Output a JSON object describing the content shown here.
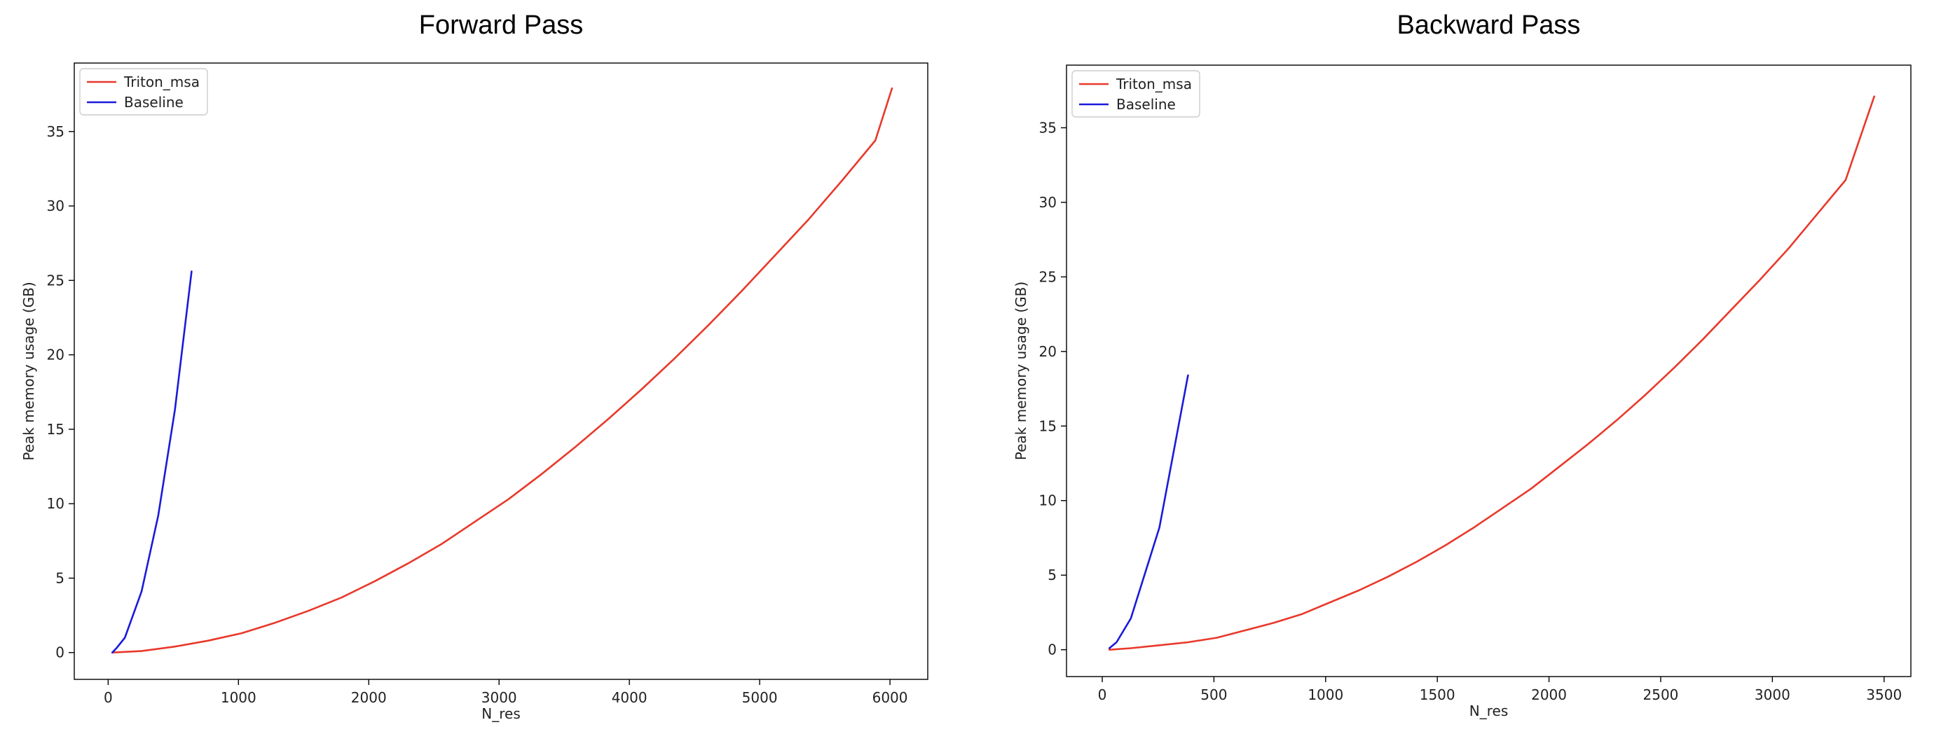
{
  "chart_data": [
    {
      "type": "line",
      "title": "Forward Pass",
      "xlabel": "N_res",
      "ylabel": "Peak memory usage (GB)",
      "xlim": [
        -260,
        6290
      ],
      "ylim": [
        -1.8,
        39.6
      ],
      "xticks": [
        0,
        1000,
        2000,
        3000,
        4000,
        5000,
        6000
      ],
      "yticks": [
        0,
        5,
        10,
        15,
        20,
        25,
        30,
        35
      ],
      "grid": false,
      "legend": "top-left",
      "series": [
        {
          "name": "Triton_msa",
          "color": "#e8392b",
          "x": [
            32,
            256,
            512,
            768,
            1024,
            1280,
            1536,
            1792,
            2048,
            2304,
            2560,
            2816,
            3072,
            3328,
            3584,
            3840,
            4096,
            4352,
            4608,
            4864,
            5120,
            5376,
            5632,
            5888,
            6016
          ],
          "y": [
            0.0,
            0.1,
            0.4,
            0.8,
            1.3,
            2.0,
            2.8,
            3.7,
            4.8,
            6.0,
            7.3,
            8.8,
            10.3,
            12.0,
            13.8,
            15.7,
            17.7,
            19.8,
            22.0,
            24.3,
            26.7,
            29.1,
            31.7,
            34.4,
            37.9
          ]
        },
        {
          "name": "Baseline",
          "color": "#1a1adb",
          "x": [
            32,
            64,
            128,
            256,
            384,
            512,
            640
          ],
          "y": [
            0.0,
            0.3,
            1.0,
            4.1,
            9.2,
            16.3,
            25.6
          ]
        }
      ]
    },
    {
      "type": "line",
      "title": "Backward Pass",
      "xlabel": "N_res",
      "ylabel": "Peak memory usage (GB)",
      "xlim": [
        -160,
        3620
      ],
      "ylim": [
        -1.8,
        39.2
      ],
      "xticks": [
        0,
        500,
        1000,
        1500,
        2000,
        2500,
        3000,
        3500
      ],
      "yticks": [
        0,
        5,
        10,
        15,
        20,
        25,
        30,
        35
      ],
      "grid": false,
      "legend": "top-left",
      "series": [
        {
          "name": "Triton_msa",
          "color": "#e8392b",
          "x": [
            32,
            128,
            256,
            384,
            512,
            640,
            768,
            896,
            1024,
            1152,
            1280,
            1408,
            1536,
            1664,
            1792,
            1920,
            2048,
            2176,
            2304,
            2432,
            2560,
            2688,
            2816,
            2944,
            3072,
            3200,
            3328,
            3456
          ],
          "y": [
            0.0,
            0.1,
            0.3,
            0.5,
            0.8,
            1.3,
            1.8,
            2.4,
            3.2,
            4.0,
            4.9,
            5.9,
            7.0,
            8.2,
            9.5,
            10.8,
            12.3,
            13.8,
            15.4,
            17.1,
            18.9,
            20.8,
            22.8,
            24.8,
            26.9,
            29.2,
            31.5,
            37.1
          ]
        },
        {
          "name": "Baseline",
          "color": "#1a1adb",
          "x": [
            32,
            64,
            128,
            256,
            384
          ],
          "y": [
            0.1,
            0.5,
            2.1,
            8.2,
            18.4
          ]
        }
      ]
    }
  ]
}
